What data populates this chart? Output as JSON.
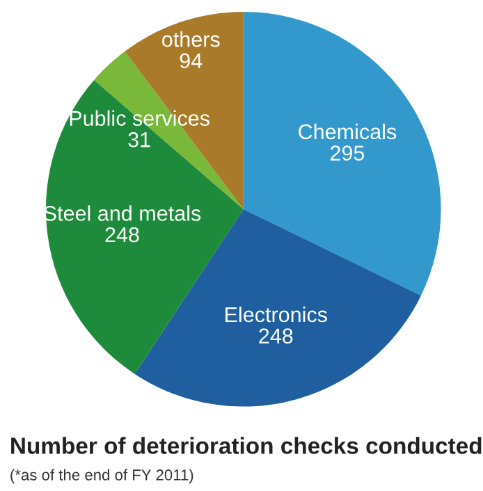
{
  "chart_data": {
    "type": "pie",
    "title": "Number of deterioration checks conducted",
    "annotations": [
      "(*as of the end of FY 2011)"
    ],
    "categories": [
      "Chemicals",
      "Electronics",
      "Steel and metals",
      "Public services",
      "others"
    ],
    "values": [
      295,
      248,
      248,
      31,
      94
    ],
    "colors": [
      "#3399cc",
      "#1f5fa0",
      "#1e8a3c",
      "#7ab83a",
      "#a87a2a"
    ],
    "data_labels": true
  }
}
